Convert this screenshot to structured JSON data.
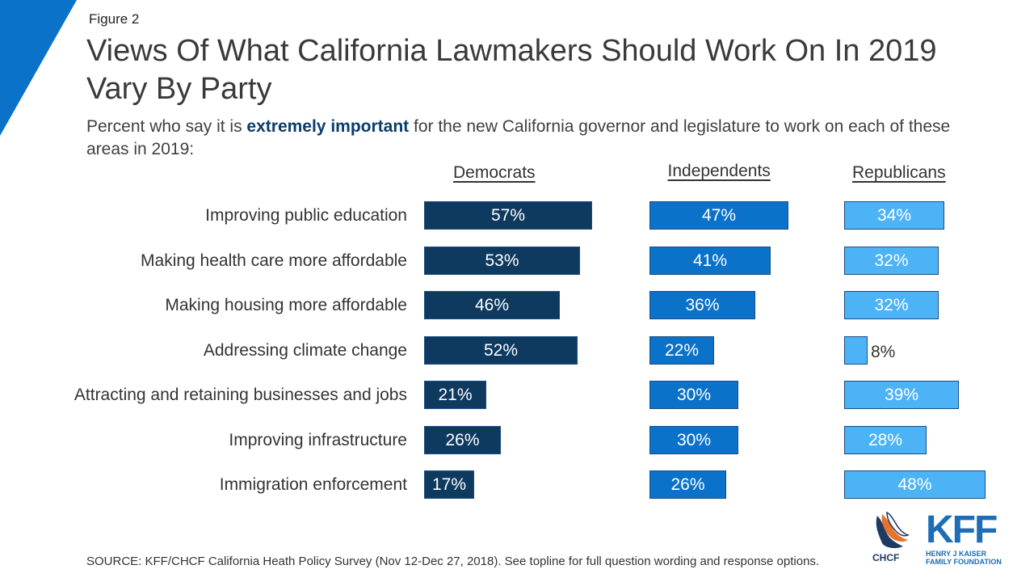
{
  "figure_label": "Figure 2",
  "title": "Views Of What California Lawmakers Should Work On In 2019 Vary By Party",
  "subtitle": {
    "before": "Percent who say it is ",
    "emphasis": "extremely important",
    "after": " for the new California governor and legislature to work on each of these areas in 2019:"
  },
  "source": "SOURCE: KFF/CHCF California Heath Policy Survey (Nov 12-Dec 27, 2018). See topline for full question wording and response options.",
  "logos": {
    "chcf": "CHCF",
    "kff": "KFF",
    "kff_subtitle": "HENRY J KAISER FAMILY FOUNDATION"
  },
  "colors": {
    "democrats": "#0e3a60",
    "independents": "#0b72c9",
    "republicans": "#4db3f7",
    "corner": "#0b72c9"
  },
  "chart_data": {
    "type": "bar",
    "orientation": "horizontal",
    "categories": [
      "Improving public education",
      "Making health care more affordable",
      "Making housing more affordable",
      "Addressing climate change",
      "Attracting and retaining businesses and jobs",
      "Improving infrastructure",
      "Immigration enforcement"
    ],
    "series": [
      {
        "name": "Democrats",
        "values": [
          57,
          53,
          46,
          52,
          21,
          26,
          17
        ]
      },
      {
        "name": "Independents",
        "values": [
          47,
          41,
          36,
          22,
          30,
          30,
          26
        ]
      },
      {
        "name": "Republicans",
        "values": [
          34,
          32,
          32,
          8,
          39,
          28,
          48
        ]
      }
    ],
    "unit": "%",
    "grid": false,
    "legend": "column headers"
  }
}
